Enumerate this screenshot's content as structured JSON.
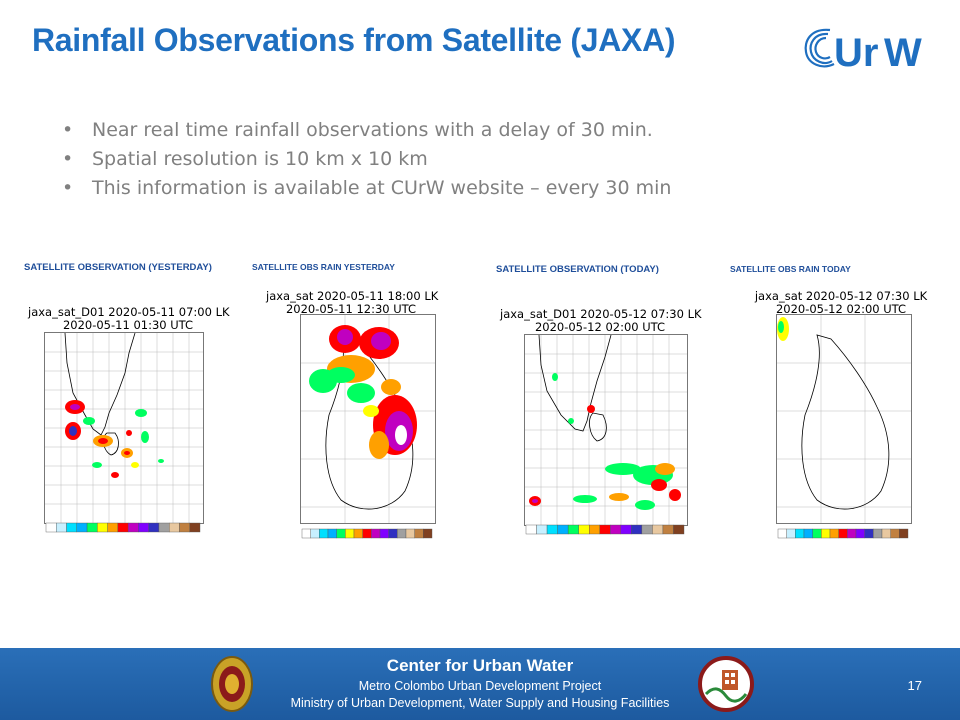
{
  "slide": {
    "title": "Rainfall Observations from Satellite (JAXA)",
    "logo_text": "CUrW",
    "bullets": [
      "Near real time rainfall observations with a delay of 30 min.",
      "Spatial resolution is 10 km x 10 km",
      "This information is available at CUrW website – every 30 min"
    ]
  },
  "panels": [
    {
      "heading": "SATELLITE OBSERVATION (YESTERDAY)",
      "line1": "jaxa_sat_D01 2020-05-11 07:00 LK",
      "line2": "2020-05-11 01:30 UTC"
    },
    {
      "heading": "SATELLITE OBS RAIN YESTERDAY",
      "line1": "jaxa_sat 2020-05-11 18:00 LK",
      "line2": "2020-05-11 12:30 UTC"
    },
    {
      "heading": "SATELLITE OBSERVATION (TODAY)",
      "line1": "jaxa_sat_D01 2020-05-12 07:30 LK",
      "line2": "2020-05-12 02:00 UTC"
    },
    {
      "heading": "SATELLITE OBS RAIN TODAY",
      "line1": "jaxa_sat 2020-05-12 07:30 LK",
      "line2": "2020-05-12 02:00 UTC"
    }
  ],
  "legend_colors": [
    "#ffffff",
    "#c8f0ff",
    "#00e0ff",
    "#00b0ff",
    "#00ff60",
    "#ffff00",
    "#ffa000",
    "#ff0000",
    "#c000c0",
    "#8000ff",
    "#3030c0",
    "#a0a0a0",
    "#e8c8a0",
    "#c08040",
    "#804020"
  ],
  "footer": {
    "title": "Center for Urban Water",
    "line1": "Metro Colombo Urban Development Project",
    "line2": "Ministry of Urban Development, Water Supply and Housing Facilities",
    "page_number": "17"
  },
  "colors": {
    "title": "#1f6fc0",
    "footer_bg": "#1d5a9f",
    "heading": "#1f4e9a"
  }
}
